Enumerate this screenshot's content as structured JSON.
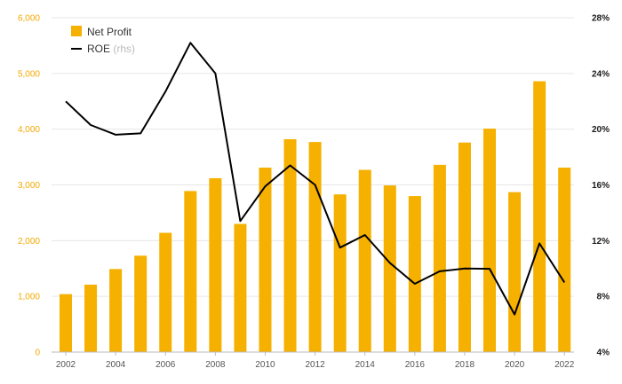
{
  "chart_data": {
    "type": "bar",
    "x": [
      2002,
      2003,
      2004,
      2005,
      2006,
      2007,
      2008,
      2009,
      2010,
      2011,
      2012,
      2013,
      2014,
      2015,
      2016,
      2017,
      2018,
      2019,
      2020,
      2021,
      2022
    ],
    "series": [
      {
        "name": "Net Profit",
        "type": "bar",
        "axis": "left",
        "color": "#f5b000",
        "values": [
          1040,
          1210,
          1490,
          1730,
          2140,
          2890,
          3120,
          2300,
          3310,
          3820,
          3770,
          2830,
          3270,
          2990,
          2800,
          3360,
          3760,
          4010,
          2870,
          4860,
          3310
        ]
      },
      {
        "name": "ROE",
        "name_suffix": "(rhs)",
        "type": "line",
        "axis": "right",
        "color": "#000000",
        "values": [
          22.0,
          20.3,
          19.6,
          19.7,
          22.7,
          26.2,
          24.0,
          13.4,
          15.9,
          17.4,
          16.0,
          11.5,
          12.4,
          10.4,
          8.9,
          9.8,
          10.0,
          9.98,
          6.7,
          11.8,
          9.0
        ]
      }
    ],
    "ylim_left": [
      0,
      6000
    ],
    "ylim_right": [
      4,
      28
    ],
    "left_ticks": [
      "0",
      "1,000",
      "2,000",
      "3,000",
      "4,000",
      "5,000",
      "6,000"
    ],
    "right_ticks": [
      "4%",
      "8%",
      "12%",
      "16%",
      "20%",
      "24%",
      "28%"
    ],
    "x_ticks": [
      "2002",
      "2004",
      "2006",
      "2008",
      "2010",
      "2012",
      "2014",
      "2016",
      "2018",
      "2020",
      "2022"
    ],
    "grid": true,
    "legend_position": "top-left"
  }
}
